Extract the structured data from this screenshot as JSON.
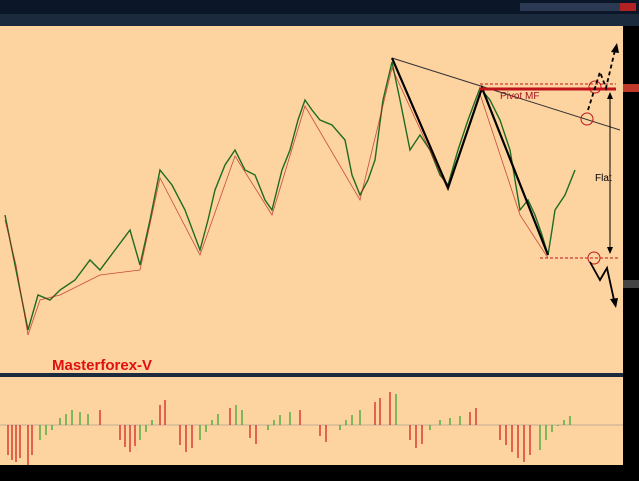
{
  "chart": {
    "annotations": {
      "pivot": "Pivot MF",
      "flat": "Flat"
    },
    "watermark": "Masterforex-V"
  }
}
